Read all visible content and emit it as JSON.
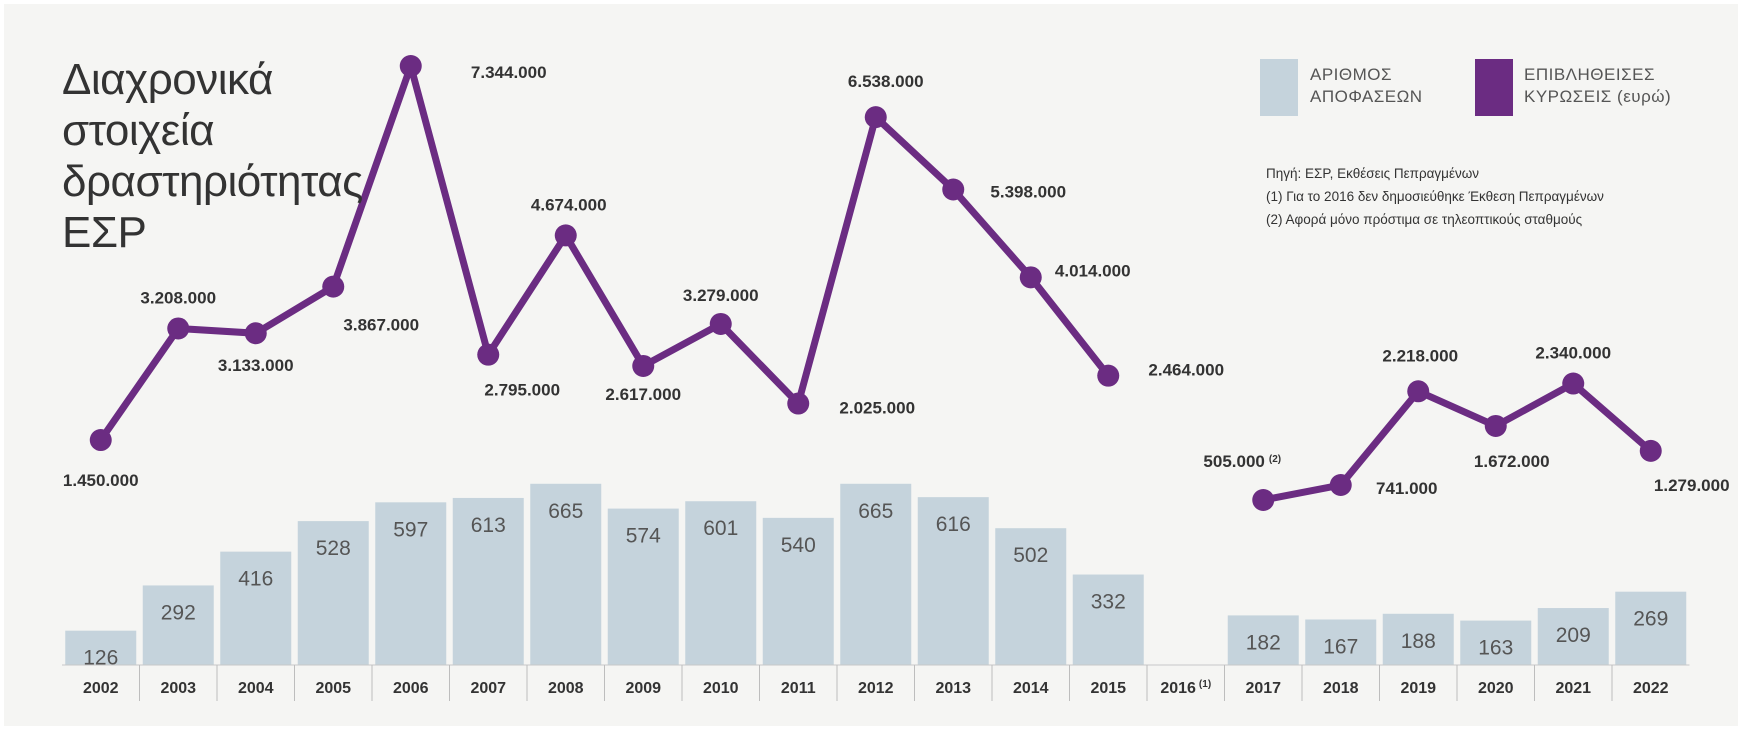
{
  "title": "Διαχρονικά\nστοιχεία\nδραστηριότητας\nΕΣΡ",
  "legend": {
    "bars_label": "ΑΡΙΘΜΟΣ\nΑΠΟΦΑΣΕΩΝ",
    "line_label": "ΕΠΙΒΛΗΘΕΙΣΕΣ\nΚΥΡΩΣΕΙΣ (ευρώ)"
  },
  "notes": {
    "source": "Πηγή: ΕΣΡ, Εκθέσεις Πεπραγμένων",
    "note1": "(1) Για το 2016 δεν δημοσιεύθηκε Έκθεση Πεπραγμένων",
    "note2": "(2) Αφορά μόνο πρόστιμα σε τηλεοπτικούς σταθμούς"
  },
  "colors": {
    "bar": "#c5d3dc",
    "line": "#6b2c82",
    "background": "#f5f5f3",
    "text": "#333333"
  },
  "chart_data": {
    "type": "bar+line",
    "categories": [
      "2002",
      "2003",
      "2004",
      "2005",
      "2006",
      "2007",
      "2008",
      "2009",
      "2010",
      "2011",
      "2012",
      "2013",
      "2014",
      "2015",
      "2016",
      "2017",
      "2018",
      "2019",
      "2020",
      "2021",
      "2022"
    ],
    "category_suffix": {
      "2016": "(1)"
    },
    "series": [
      {
        "name": "ΑΡΙΘΜΟΣ ΑΠΟΦΑΣΕΩΝ",
        "type": "bar",
        "values": [
          126,
          292,
          416,
          528,
          597,
          613,
          665,
          574,
          601,
          540,
          665,
          616,
          502,
          332,
          null,
          182,
          167,
          188,
          163,
          209,
          269
        ],
        "labels": [
          "126",
          "292",
          "416",
          "528",
          "597",
          "613",
          "665",
          "574",
          "601",
          "540",
          "665",
          "616",
          "502",
          "332",
          "",
          "182",
          "167",
          "188",
          "163",
          "209",
          "269"
        ]
      },
      {
        "name": "ΕΠΙΒΛΗΘΕΙΣΕΣ ΚΥΡΩΣΕΙΣ (ευρώ)",
        "type": "line",
        "values": [
          1450000,
          3208000,
          3133000,
          3867000,
          7344000,
          2795000,
          4674000,
          2617000,
          3279000,
          2025000,
          6538000,
          5398000,
          4014000,
          2464000,
          null,
          505000,
          741000,
          2218000,
          1672000,
          2340000,
          1279000
        ],
        "labels": [
          "1.450.000",
          "3.208.000",
          "3.133.000",
          "3.867.000",
          "7.344.000",
          "2.795.000",
          "4.674.000",
          "2.617.000",
          "3.279.000",
          "2.025.000",
          "6.538.000",
          "5.398.000",
          "4.014.000",
          "2.464.000",
          "",
          "505.000",
          "741.000",
          "2.218.000",
          "1.672.000",
          "2.340.000",
          "1.279.000"
        ],
        "label_suffix": {
          "2017": "(2)"
        }
      }
    ]
  }
}
